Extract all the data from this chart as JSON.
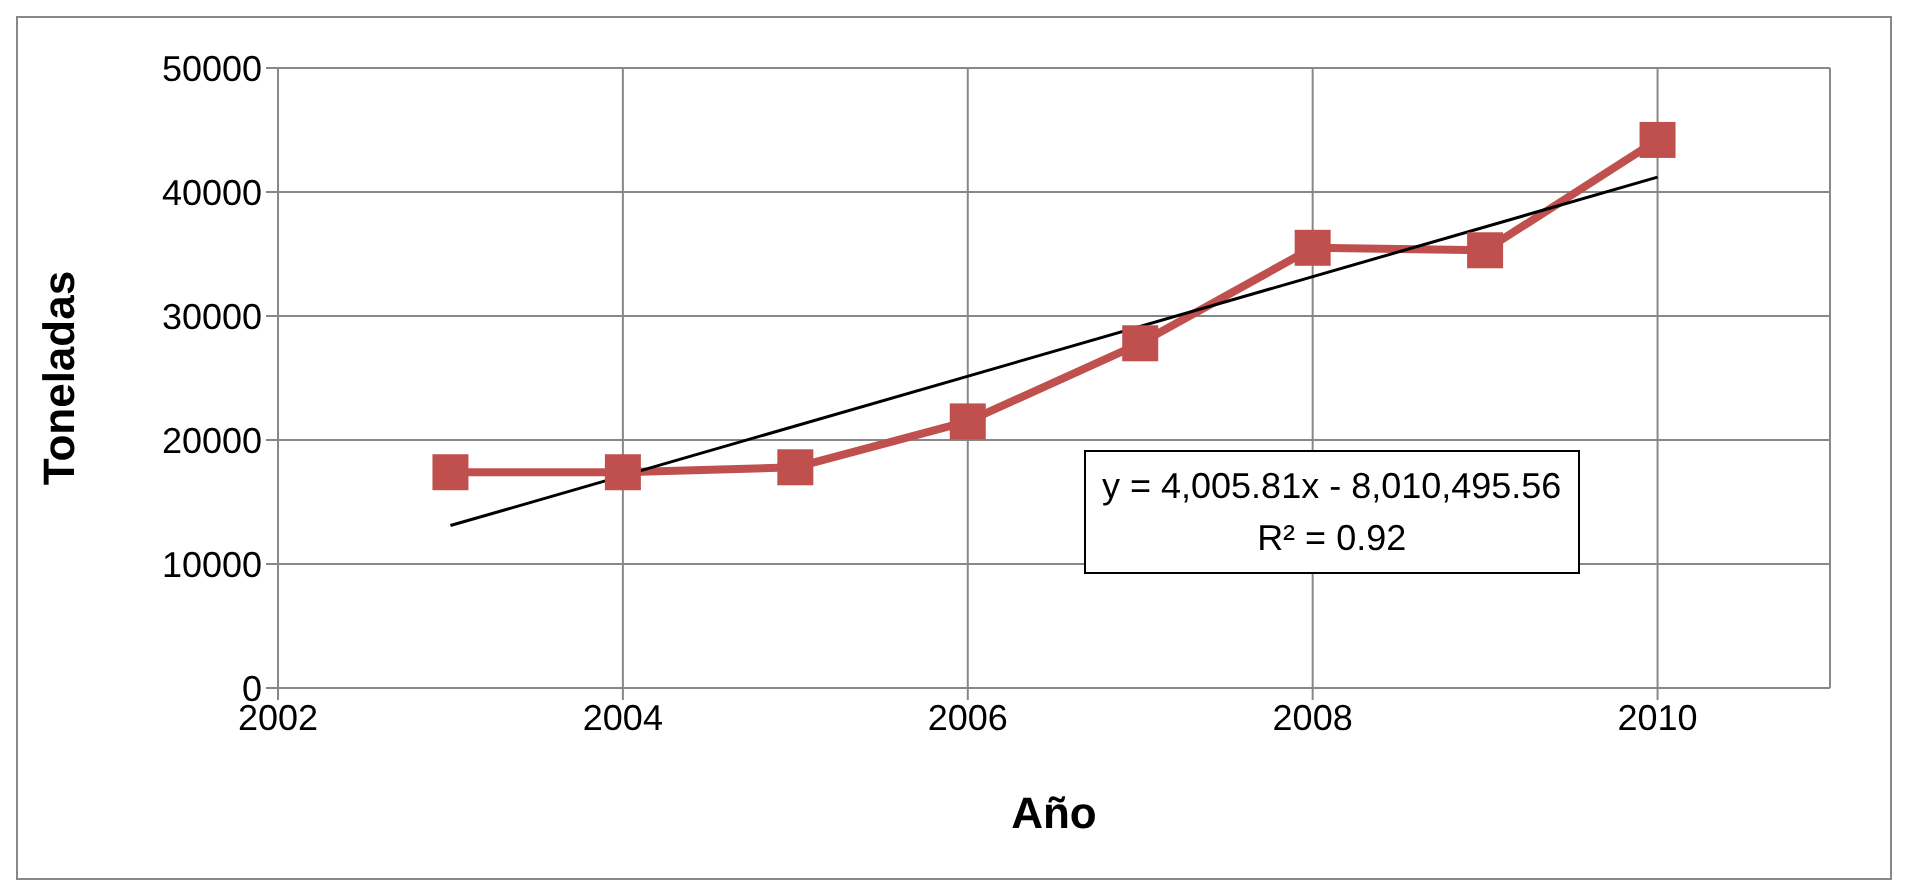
{
  "chart_data": {
    "type": "line",
    "xlabel": "Año",
    "ylabel": "Toneladas",
    "x": [
      2003,
      2004,
      2005,
      2006,
      2007,
      2008,
      2009,
      2010
    ],
    "series": [
      {
        "color": "#c0504d",
        "values": [
          17400,
          17400,
          17800,
          21500,
          27800,
          35500,
          35300,
          44200
        ]
      },
      {
        "x": [
          2003,
          2010
        ],
        "color": "#000000",
        "values": [
          13100,
          41200
        ],
        "marker": "none"
      }
    ],
    "xlim": [
      2002,
      2011
    ],
    "xticks": [
      2002,
      2004,
      2006,
      2008,
      2010
    ],
    "ylim": [
      0,
      50000
    ],
    "yticks": [
      0,
      10000,
      20000,
      30000,
      40000,
      50000
    ],
    "grid": true,
    "marker": "square",
    "annotations": [
      "y = 4,005.81x - 8,010,495.56",
      "R² = 0.92"
    ]
  }
}
